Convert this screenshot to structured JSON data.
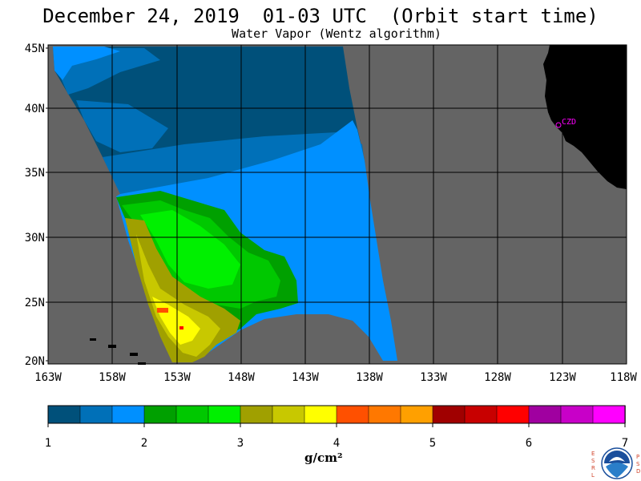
{
  "title": "December 24, 2019  01-03 UTC  (Orbit start time)",
  "subtitle": "Water Vapor (Wentz algorithm)",
  "map": {
    "lat_labels": [
      "45N",
      "40N",
      "35N",
      "30N",
      "25N",
      "20N"
    ],
    "lon_labels": [
      "163W",
      "158W",
      "153W",
      "148W",
      "143W",
      "138W",
      "133W",
      "128W",
      "123W",
      "118W"
    ],
    "station_label": "CZD",
    "colors": {
      "no_data": "#646464",
      "land": "#000000",
      "grid": "#000000",
      "station": "#ff00ff"
    }
  },
  "colorbar": {
    "tick_labels": [
      "1",
      "2",
      "3",
      "4",
      "5",
      "6",
      "7"
    ],
    "colors": [
      "#00507a",
      "#0070b8",
      "#0090ff",
      "#00a000",
      "#00c800",
      "#00f000",
      "#a0a000",
      "#c8c800",
      "#ffff00",
      "#ff5000",
      "#ff7800",
      "#ffa000",
      "#a00000",
      "#c80000",
      "#ff0000",
      "#a000a0",
      "#c800c8",
      "#ff00ff"
    ],
    "unit": "g/cm²"
  },
  "logo": {
    "left_letters": [
      "E",
      "S",
      "R",
      "L"
    ],
    "right_letters": [
      "P",
      "S",
      "D"
    ],
    "center": "NOAA"
  }
}
